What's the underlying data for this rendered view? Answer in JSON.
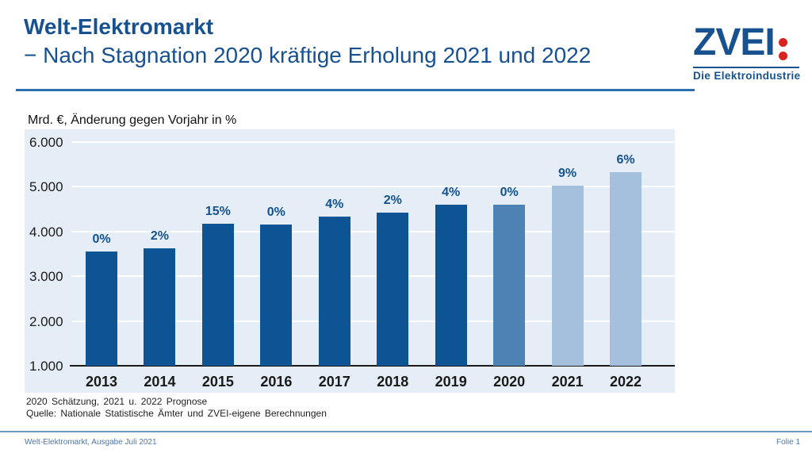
{
  "header": {
    "title_line1": "Welt-Elektromarkt",
    "title_line2": "− Nach Stagnation 2020 kräftige Erholung 2021 und 2022"
  },
  "logo": {
    "wordmark": "ZVEI",
    "tagline": "Die Elektroindustrie",
    "brand_blue": "#17518f",
    "brand_red": "#d92321"
  },
  "chart_data": {
    "type": "bar",
    "title": "Mrd. €, Änderung gegen Vorjahr in %",
    "categories": [
      "2013",
      "2014",
      "2015",
      "2016",
      "2017",
      "2018",
      "2019",
      "2020",
      "2021",
      "2022"
    ],
    "values": [
      3550,
      3620,
      4160,
      4150,
      4330,
      4410,
      4590,
      4590,
      5010,
      5310
    ],
    "bar_labels": [
      "0%",
      "2%",
      "15%",
      "0%",
      "4%",
      "2%",
      "4%",
      "0%",
      "9%",
      "6%"
    ],
    "bar_roles": [
      "actual",
      "actual",
      "actual",
      "actual",
      "actual",
      "actual",
      "actual",
      "estimate",
      "forecast",
      "forecast"
    ],
    "palette": {
      "actual": "#0c5493",
      "estimate": "#4e81b4",
      "forecast": "#a4c0dc"
    },
    "xlabel": "",
    "ylabel": "Mrd. €",
    "ylim": [
      1000,
      6000
    ],
    "yticks": [
      {
        "label": "6.000",
        "value": 6000
      },
      {
        "label": "5.000",
        "value": 5000
      },
      {
        "label": "4.000",
        "value": 4000
      },
      {
        "label": "3.000",
        "value": 3000
      },
      {
        "label": "2.000",
        "value": 2000
      },
      {
        "label": "1.000",
        "value": 1000
      }
    ],
    "grid": true,
    "legend_position": "none",
    "plot_background": "#e5eef7"
  },
  "footnotes": {
    "line1": "2020 Schätzung, 2021 u. 2022 Prognose",
    "line2": "Quelle: Nationale Statistische Ämter und ZVEI-eigene Berechnungen"
  },
  "footer": {
    "left": "Welt-Elektromarkt, Ausgabe Juli 2021",
    "right": "Folie 1"
  }
}
